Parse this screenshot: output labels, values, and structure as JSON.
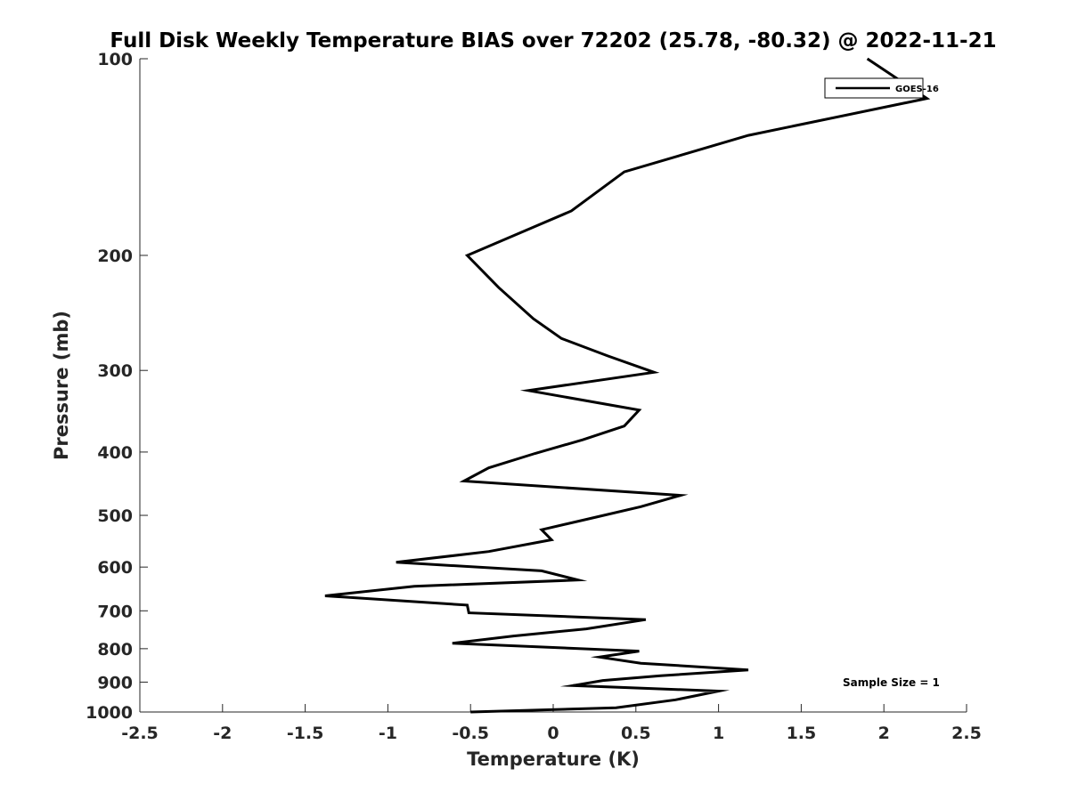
{
  "chart_data": {
    "type": "line",
    "title": "Full Disk Weekly Temperature BIAS over 72202 (25.78, -80.32) @ 2022-11-21",
    "xlabel": "Temperature (K)",
    "ylabel": "Pressure (mb)",
    "xlim": [
      -2.5,
      2.5
    ],
    "ylim": [
      100,
      1000
    ],
    "yscale": "log",
    "yreversed": true,
    "grid": false,
    "x_ticks": [
      -2.5,
      -2,
      -1.5,
      -1,
      -0.5,
      0,
      0.5,
      1,
      1.5,
      2,
      2.5
    ],
    "x_tick_labels": [
      "-2.5",
      "-2",
      "-1.5",
      "-1",
      "-0.5",
      "0",
      "0.5",
      "1",
      "1.5",
      "2",
      "2.5"
    ],
    "y_ticks": [
      100,
      200,
      300,
      400,
      500,
      600,
      700,
      800,
      900,
      1000
    ],
    "y_tick_labels": [
      "100",
      "200",
      "300",
      "400",
      "500",
      "600",
      "700",
      "800",
      "900",
      "1000"
    ],
    "legend": {
      "position": "top-right",
      "entries": [
        "GOES-16"
      ]
    },
    "annotation": "Sample Size = 1",
    "series": [
      {
        "name": "GOES-16",
        "color": "#000000",
        "points": [
          {
            "x": 1.9,
            "y": 100
          },
          {
            "x": 2.26,
            "y": 115
          },
          {
            "x": 1.18,
            "y": 131
          },
          {
            "x": 0.43,
            "y": 149
          },
          {
            "x": 0.11,
            "y": 171
          },
          {
            "x": -0.52,
            "y": 200
          },
          {
            "x": -0.33,
            "y": 224
          },
          {
            "x": -0.12,
            "y": 250
          },
          {
            "x": 0.05,
            "y": 268
          },
          {
            "x": 0.33,
            "y": 285
          },
          {
            "x": 0.61,
            "y": 302
          },
          {
            "x": -0.15,
            "y": 322
          },
          {
            "x": 0.52,
            "y": 345
          },
          {
            "x": 0.43,
            "y": 365
          },
          {
            "x": 0.18,
            "y": 383
          },
          {
            "x": -0.11,
            "y": 402
          },
          {
            "x": -0.39,
            "y": 423
          },
          {
            "x": -0.54,
            "y": 443
          },
          {
            "x": 0.77,
            "y": 466
          },
          {
            "x": 0.53,
            "y": 485
          },
          {
            "x": 0.26,
            "y": 503
          },
          {
            "x": -0.07,
            "y": 526
          },
          {
            "x": -0.01,
            "y": 545
          },
          {
            "x": -0.39,
            "y": 568
          },
          {
            "x": -0.95,
            "y": 590
          },
          {
            "x": -0.07,
            "y": 608
          },
          {
            "x": 0.15,
            "y": 628
          },
          {
            "x": -0.84,
            "y": 642
          },
          {
            "x": -1.38,
            "y": 664
          },
          {
            "x": -0.52,
            "y": 686
          },
          {
            "x": -0.51,
            "y": 705
          },
          {
            "x": 0.56,
            "y": 722
          },
          {
            "x": 0.2,
            "y": 746
          },
          {
            "x": -0.24,
            "y": 765
          },
          {
            "x": -0.61,
            "y": 785
          },
          {
            "x": 0.52,
            "y": 807
          },
          {
            "x": 0.28,
            "y": 824
          },
          {
            "x": 0.53,
            "y": 842
          },
          {
            "x": 1.18,
            "y": 862
          },
          {
            "x": 0.65,
            "y": 880
          },
          {
            "x": 0.3,
            "y": 895
          },
          {
            "x": 0.12,
            "y": 911
          },
          {
            "x": 1.0,
            "y": 929
          },
          {
            "x": 0.74,
            "y": 958
          },
          {
            "x": 0.38,
            "y": 985
          },
          {
            "x": -0.5,
            "y": 1000
          }
        ]
      }
    ]
  }
}
